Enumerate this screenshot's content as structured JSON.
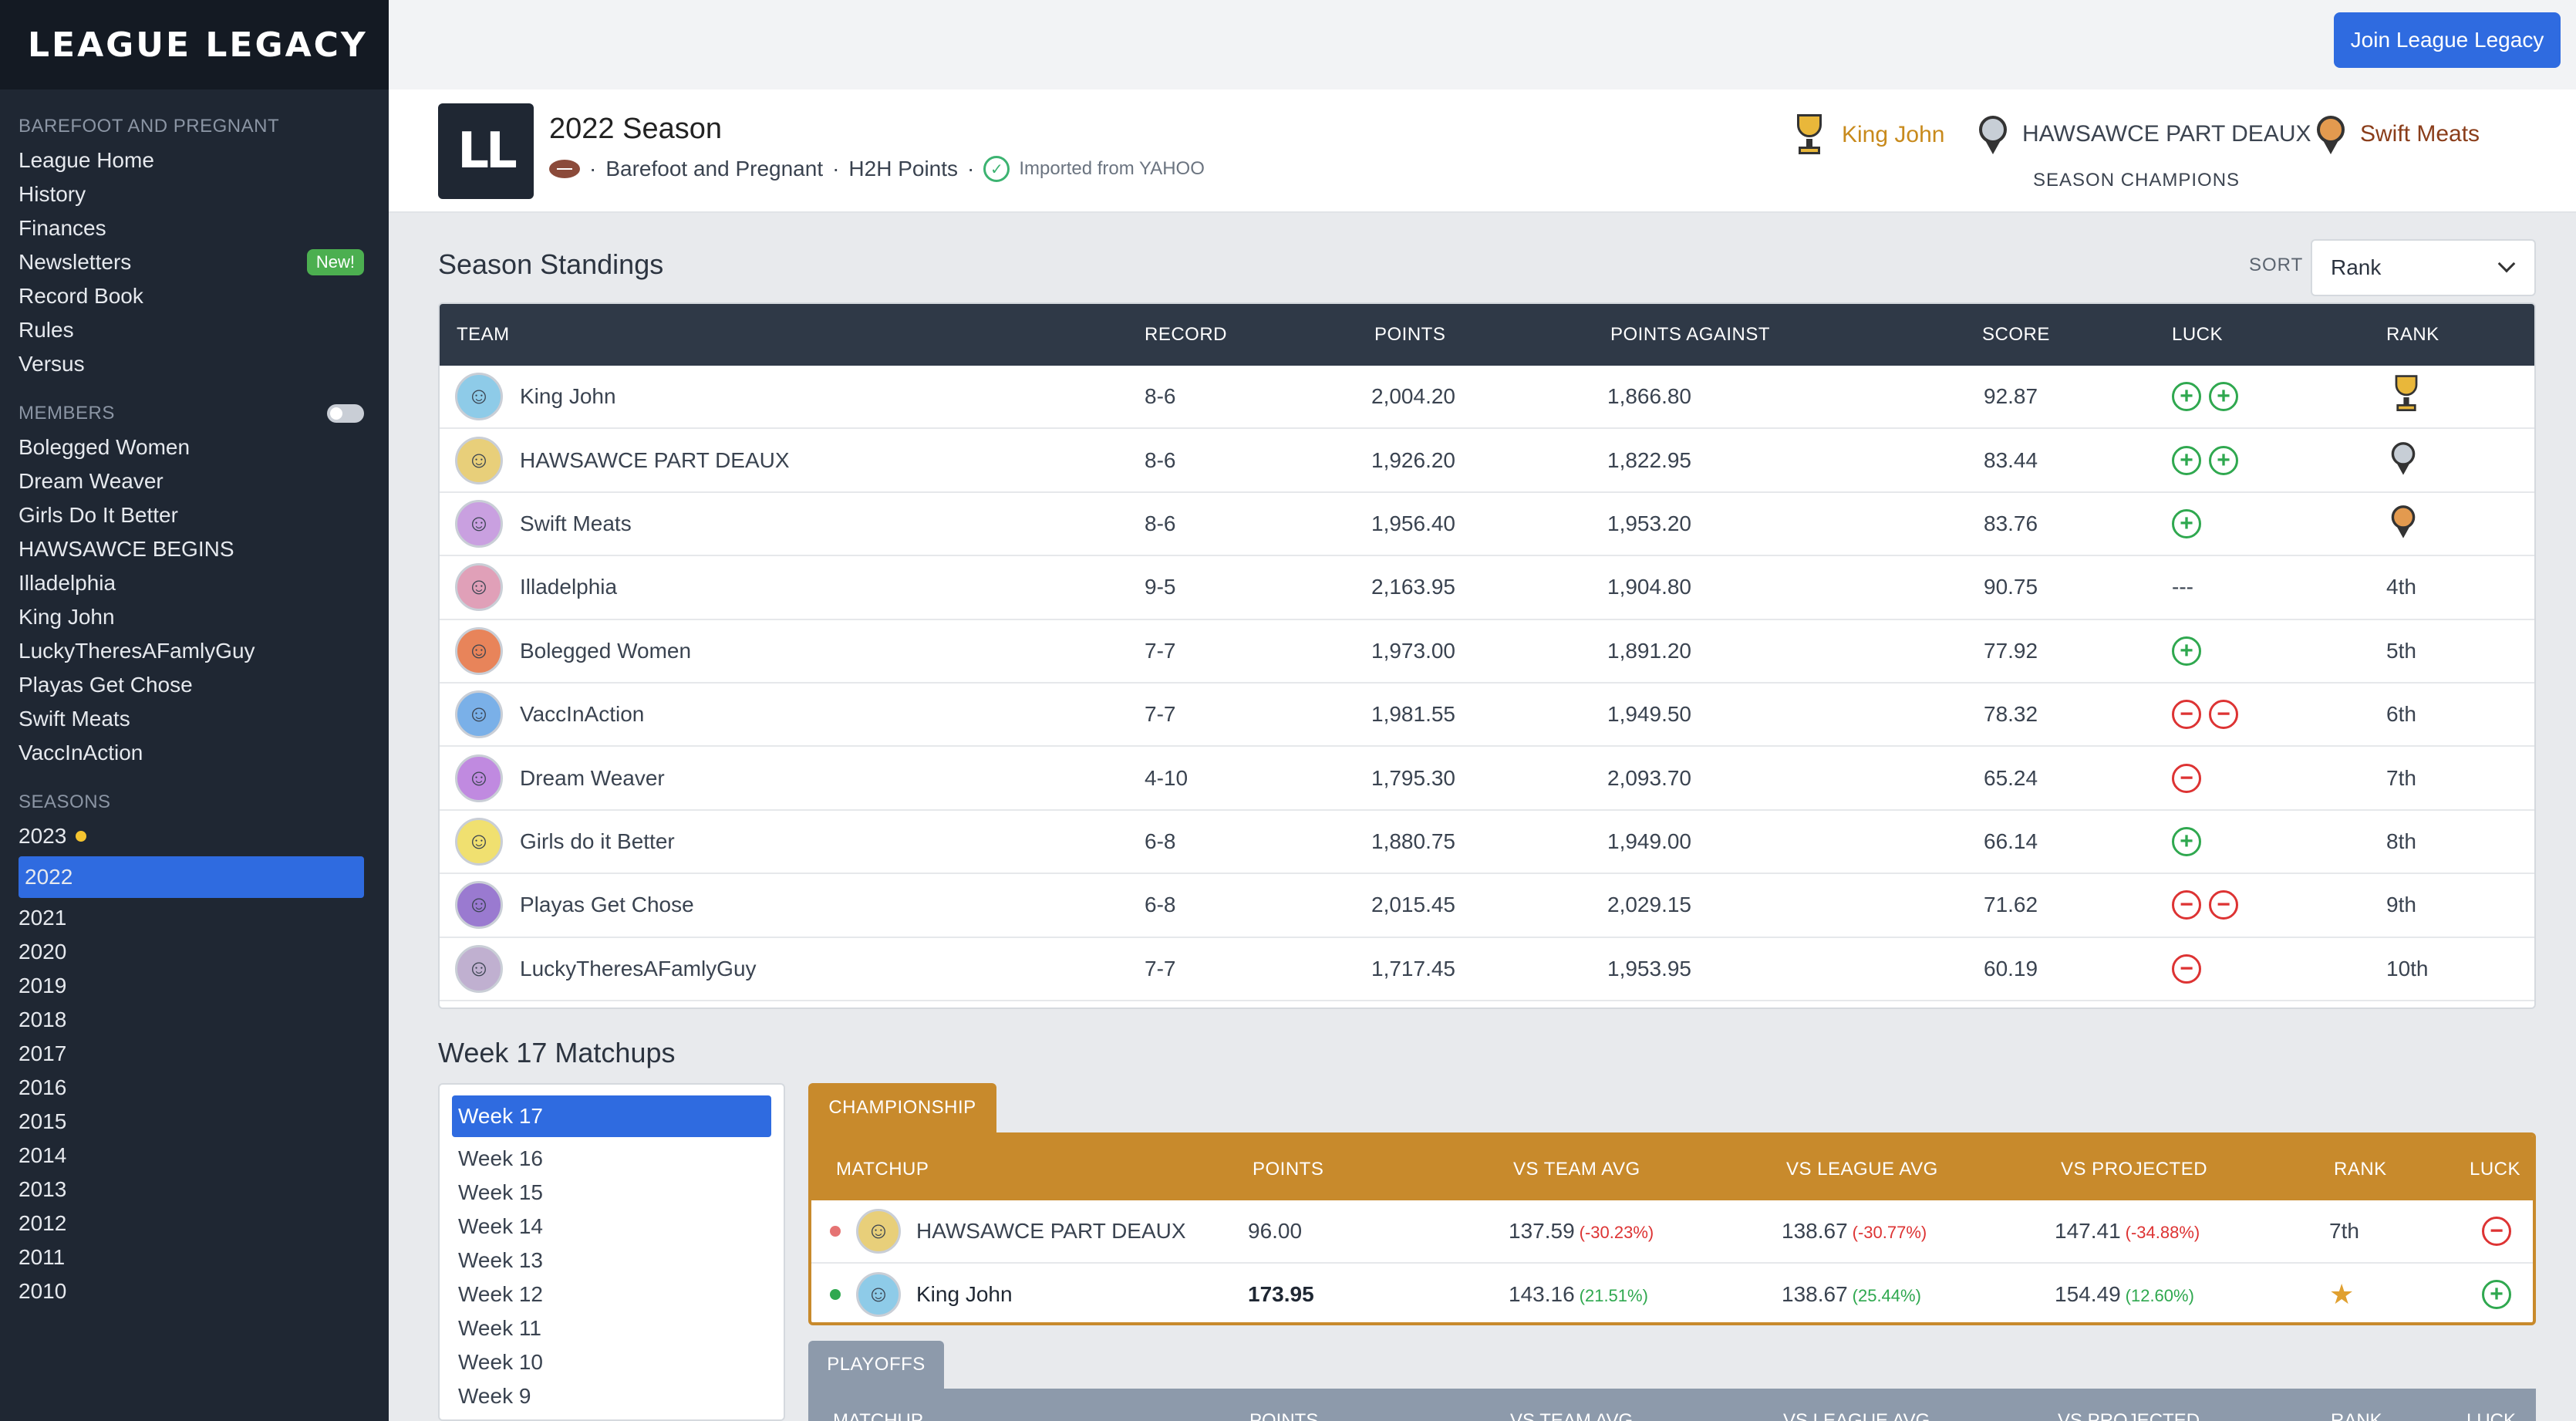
{
  "brand": {
    "logo_text": "LEAGUE LEGACY"
  },
  "topbar": {
    "join_button": "Join League Legacy"
  },
  "sidebar": {
    "league_heading": "BAREFOOT AND PREGNANT",
    "league_items": [
      "League Home",
      "History",
      "Finances",
      "Newsletters",
      "Record Book",
      "Rules",
      "Versus"
    ],
    "new_badge": "New!",
    "members_heading": "MEMBERS",
    "members": [
      "Bolegged Women",
      "Dream Weaver",
      "Girls Do It Better",
      "HAWSAWCE BEGINS",
      "Illadelphia",
      "King John",
      "LuckyTheresAFamlyGuy",
      "Playas Get Chose",
      "Swift Meats",
      "VaccInAction"
    ],
    "seasons_heading": "SEASONS",
    "seasons": [
      "2023",
      "2022",
      "2021",
      "2020",
      "2019",
      "2018",
      "2017",
      "2016",
      "2015",
      "2014",
      "2013",
      "2012",
      "2011",
      "2010"
    ],
    "active_season": "2022"
  },
  "season": {
    "logo_text": "LL",
    "title": "2022 Season",
    "league": "Barefoot and Pregnant",
    "scoring": "H2H Points",
    "sep": "·",
    "imported": "Imported from YAHOO"
  },
  "champions": {
    "gold": "King John",
    "silver": "HAWSAWCE PART DEAUX",
    "bronze": "Swift Meats",
    "label": "SEASON CHAMPIONS"
  },
  "standings": {
    "title": "Season Standings",
    "sort_label": "SORT",
    "sort_value": "Rank",
    "columns": [
      "TEAM",
      "RECORD",
      "POINTS",
      "POINTS AGAINST",
      "SCORE",
      "LUCK",
      "RANK"
    ],
    "rows": [
      {
        "team": "King John",
        "record": "8-6",
        "points": "2,004.20",
        "against": "1,866.80",
        "score": "92.87",
        "luck": [
          "+",
          "+"
        ],
        "rank": "trophy-gold",
        "avatar": "#8ecbe8"
      },
      {
        "team": "HAWSAWCE PART DEAUX",
        "record": "8-6",
        "points": "1,926.20",
        "against": "1,822.95",
        "score": "83.44",
        "luck": [
          "+",
          "+"
        ],
        "rank": "medal-silver",
        "avatar": "#e8cf7a"
      },
      {
        "team": "Swift Meats",
        "record": "8-6",
        "points": "1,956.40",
        "against": "1,953.20",
        "score": "83.76",
        "luck": [
          "+"
        ],
        "rank": "medal-bronze",
        "avatar": "#c9a0e0"
      },
      {
        "team": "Illadelphia",
        "record": "9-5",
        "points": "2,163.95",
        "against": "1,904.80",
        "score": "90.75",
        "luck": [
          "---"
        ],
        "rank": "4th",
        "avatar": "#e0a0b8"
      },
      {
        "team": "Bolegged Women",
        "record": "7-7",
        "points": "1,973.00",
        "against": "1,891.20",
        "score": "77.92",
        "luck": [
          "+"
        ],
        "rank": "5th",
        "avatar": "#e8845a"
      },
      {
        "team": "VaccInAction",
        "record": "7-7",
        "points": "1,981.55",
        "against": "1,949.50",
        "score": "78.32",
        "luck": [
          "-",
          "-"
        ],
        "rank": "6th",
        "avatar": "#7ab0e8"
      },
      {
        "team": "Dream Weaver",
        "record": "4-10",
        "points": "1,795.30",
        "against": "2,093.70",
        "score": "65.24",
        "luck": [
          "-"
        ],
        "rank": "7th",
        "avatar": "#c08ae0"
      },
      {
        "team": "Girls do it Better",
        "record": "6-8",
        "points": "1,880.75",
        "against": "1,949.00",
        "score": "66.14",
        "luck": [
          "+"
        ],
        "rank": "8th",
        "avatar": "#f0e070"
      },
      {
        "team": "Playas Get Chose",
        "record": "6-8",
        "points": "2,015.45",
        "against": "2,029.15",
        "score": "71.62",
        "luck": [
          "-",
          "-"
        ],
        "rank": "9th",
        "avatar": "#9a7ad0"
      },
      {
        "team": "LuckyTheresAFamlyGuy",
        "record": "7-7",
        "points": "1,717.45",
        "against": "1,953.95",
        "score": "60.19",
        "luck": [
          "-"
        ],
        "rank": "10th",
        "avatar": "#c0b0d0"
      }
    ]
  },
  "matchups": {
    "title": "Week 17 Matchups",
    "weeks": [
      "Week 17",
      "Week 16",
      "Week 15",
      "Week 14",
      "Week 13",
      "Week 12",
      "Week 11",
      "Week 10",
      "Week 9"
    ],
    "active_week": "Week 17",
    "championship_tab": "CHAMPIONSHIP",
    "columns": [
      "MATCHUP",
      "POINTS",
      "VS TEAM AVG",
      "VS LEAGUE AVG",
      "VS PROJECTED",
      "RANK",
      "LUCK"
    ],
    "championship_rows": [
      {
        "team": "HAWSAWCE PART DEAUX",
        "points": "96.00",
        "team_avg": "137.59",
        "team_avg_pct": "(-30.23%)",
        "league_avg": "138.67",
        "league_avg_pct": "(-30.77%)",
        "projected": "147.41",
        "projected_pct": "(-34.88%)",
        "rank": "7th",
        "luck": "-",
        "status": "loss",
        "avatar": "#e8cf7a"
      },
      {
        "team": "King John",
        "points": "173.95",
        "team_avg": "143.16",
        "team_avg_pct": "(21.51%)",
        "league_avg": "138.67",
        "league_avg_pct": "(25.44%)",
        "projected": "154.49",
        "projected_pct": "(12.60%)",
        "rank": "star",
        "luck": "+",
        "status": "win",
        "avatar": "#8ecbe8"
      }
    ],
    "playoffs_tab": "PLAYOFFS"
  },
  "colors": {
    "accent": "#2f6be0",
    "gold": "#c88a2c",
    "sidebar": "#1f2733",
    "positive": "#2fa84f",
    "negative": "#d33333"
  }
}
